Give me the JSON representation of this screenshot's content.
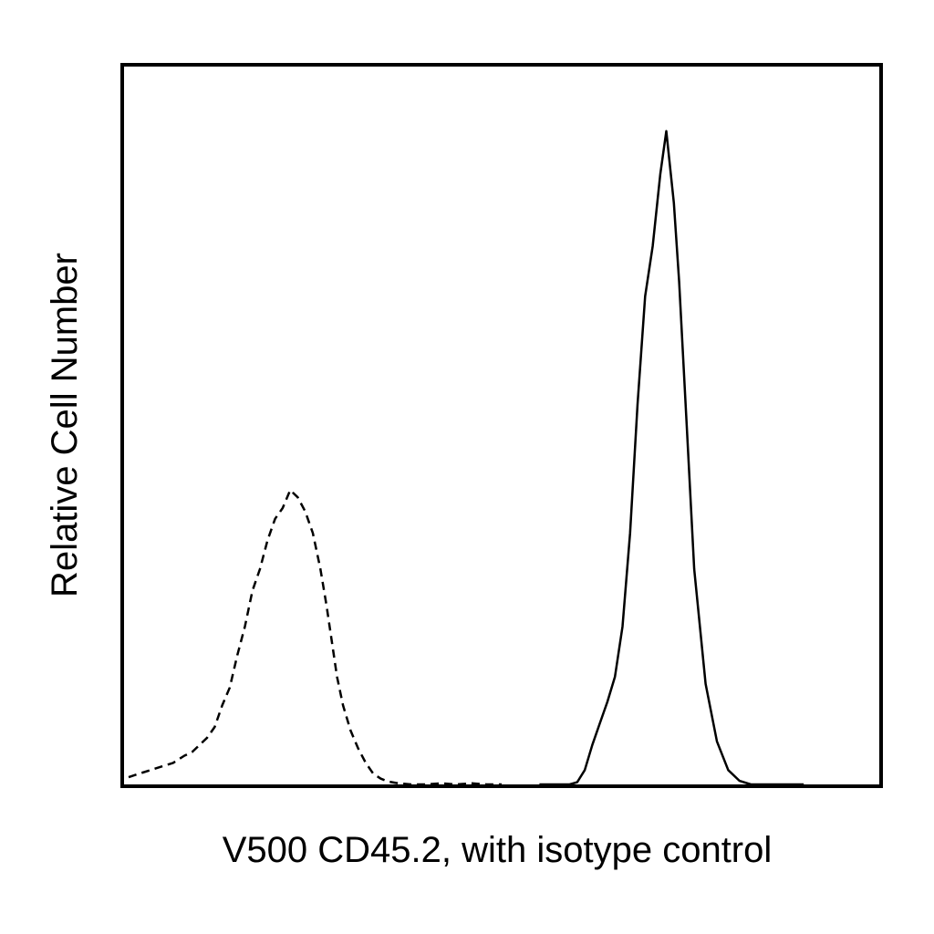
{
  "chart_data": {
    "type": "line",
    "title": "",
    "xlabel": "V500 CD45.2, with isotype control",
    "ylabel": "Relative Cell Number",
    "xlim": [
      0,
      100
    ],
    "ylim": [
      0,
      100
    ],
    "grid": false,
    "legend": "none",
    "series": [
      {
        "line_style": "dashed",
        "color": "#000000",
        "x": [
          0.6,
          2,
          3.5,
          5,
          6.5,
          8,
          9,
          10,
          11,
          12,
          13,
          14,
          15,
          16,
          17,
          18,
          19,
          20,
          21,
          22,
          23,
          24,
          25,
          26,
          26.8,
          27.5,
          28.2,
          29,
          30,
          31,
          32,
          33,
          34,
          35,
          36,
          37,
          38,
          40,
          42,
          44,
          46,
          48,
          50
        ],
        "y": [
          1,
          1.5,
          2,
          2.5,
          3,
          4,
          4.5,
          5.5,
          6.5,
          8,
          11,
          13.5,
          18,
          22,
          27,
          30,
          34,
          37,
          38.5,
          41,
          40,
          38,
          35,
          30,
          25,
          20,
          15,
          11,
          7.5,
          5,
          3,
          1.5,
          0.8,
          0.4,
          0.2,
          0.1,
          0,
          0,
          0.15,
          0,
          0.15,
          0,
          0
        ]
      },
      {
        "line_style": "solid",
        "color": "#000000",
        "x": [
          55,
          57,
          59,
          60,
          61,
          62,
          63,
          64,
          65,
          66,
          67,
          68,
          69,
          70,
          71,
          71.8,
          72.8,
          73.5,
          74.5,
          75.5,
          77,
          78.5,
          80,
          81.5,
          83,
          85,
          90
        ],
        "y": [
          0,
          0,
          0,
          0.3,
          2,
          5.5,
          8.5,
          11.5,
          15,
          22,
          35,
          53,
          68,
          75,
          85,
          91,
          81,
          70,
          50,
          30,
          14,
          6,
          2,
          0.5,
          0,
          0,
          0
        ]
      }
    ]
  }
}
